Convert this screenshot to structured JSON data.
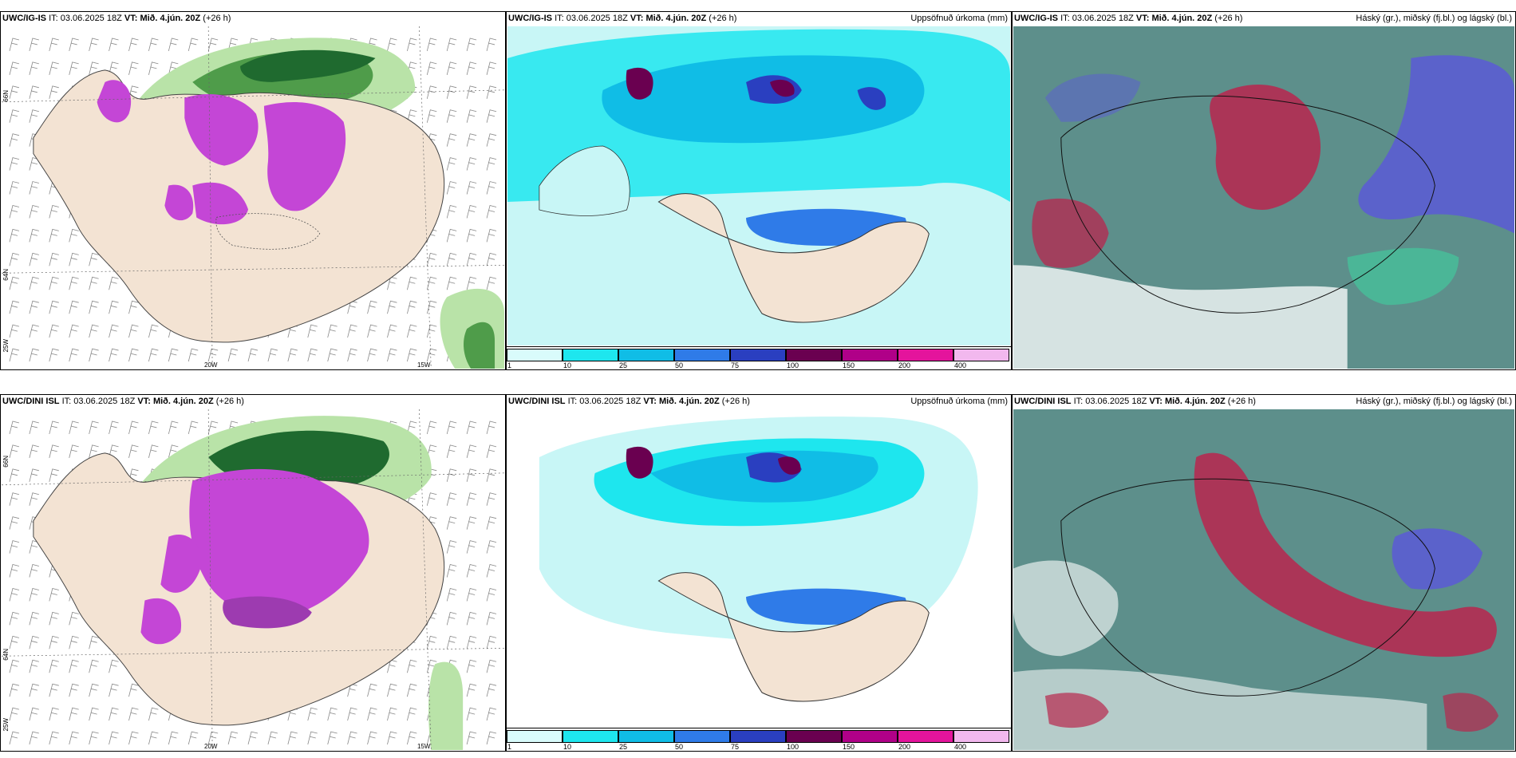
{
  "rows": [
    {
      "model_label": "UWC/IG-IS",
      "it_prefix": "IT:",
      "it_value": "03.06.2025 18Z",
      "vt_label": "VT: Mið. 4.jún. 20Z",
      "lead": "(+26 h)"
    },
    {
      "model_label": "UWC/DINI ISL",
      "it_prefix": "IT:",
      "it_value": "03.06.2025 18Z",
      "vt_label": "VT: Mið. 4.jún. 20Z",
      "lead": "(+26 h)"
    }
  ],
  "panel_titles": {
    "precip": "Uppsöfnuð úrkoma (mm)",
    "cloud": "Háský (gr.), miðský (fj.bl.) og lágský (bl.)"
  },
  "colorbar": {
    "ticks": [
      "1",
      "10",
      "25",
      "50",
      "75",
      "100",
      "150",
      "200",
      "400"
    ],
    "colors": [
      "#d9fbfb",
      "#1ee6ee",
      "#10bde6",
      "#2f7be8",
      "#2a3fc0",
      "#6a0050",
      "#b00088",
      "#e4149c",
      "#f2b8ee"
    ]
  },
  "axis_labels": {
    "lat_66": "66N",
    "lat_64": "64N",
    "lat_25w": "25W",
    "lon_20w": "20W",
    "lon_15w": "15W"
  },
  "colors": {
    "land": "#f3e3d3",
    "sea_precip": "#c8f6f6",
    "green_light": "#b9e3a8",
    "green_dark": "#1f6a2f",
    "magenta": "#c446d6",
    "cloud_teal": "#2e6f6a",
    "cloud_red": "#b8264d",
    "cloud_blue": "#5b5bd6"
  }
}
